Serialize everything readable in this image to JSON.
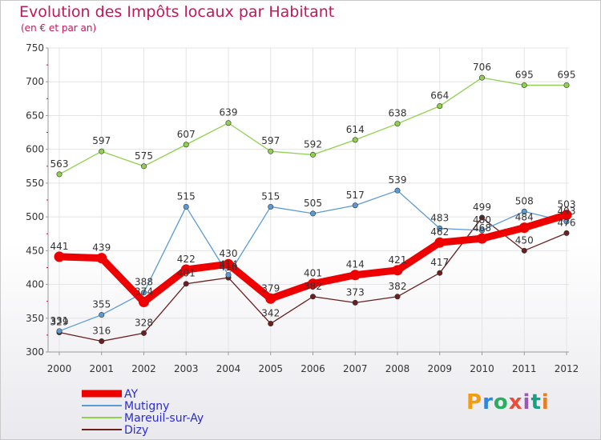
{
  "header": {
    "title": "Evolution des Impôts locaux par Habitant",
    "subtitle": "(en € et par an)"
  },
  "logo": {
    "text": "Proxiti",
    "colors": [
      "#f39c12",
      "#2e86de",
      "#27ae60",
      "#e74c3c",
      "#9b59b6",
      "#16a085",
      "#e67e22"
    ]
  },
  "chart_data": {
    "type": "line",
    "title": "Evolution des Impôts locaux par Habitant",
    "subtitle": "(en € et par an)",
    "x": [
      2000,
      2001,
      2002,
      2003,
      2004,
      2005,
      2006,
      2007,
      2008,
      2009,
      2010,
      2011,
      2012
    ],
    "ylim": [
      300,
      750
    ],
    "yticks": [
      300,
      350,
      400,
      450,
      500,
      550,
      600,
      650,
      700,
      750
    ],
    "grid": true,
    "legend_position": "bottom-left",
    "series": [
      {
        "name": "AY",
        "color": "#ee0000",
        "values": [
          441,
          439,
          374,
          422,
          430,
          379,
          401,
          414,
          421,
          462,
          468,
          484,
          503
        ]
      },
      {
        "name": "Mutigny",
        "color": "#5b9bd5",
        "values": [
          331,
          355,
          388,
          515,
          414,
          515,
          505,
          517,
          539,
          483,
          480,
          508,
          493
        ]
      },
      {
        "name": "Mareuil-sur-Ay",
        "color": "#8fd14f",
        "values": [
          563,
          597,
          575,
          607,
          639,
          597,
          592,
          614,
          638,
          664,
          706,
          695,
          695
        ]
      },
      {
        "name": "Dizy",
        "color": "#6b1f1f",
        "values": [
          329,
          316,
          328,
          401,
          410,
          342,
          382,
          373,
          382,
          417,
          499,
          450,
          476
        ]
      }
    ]
  }
}
